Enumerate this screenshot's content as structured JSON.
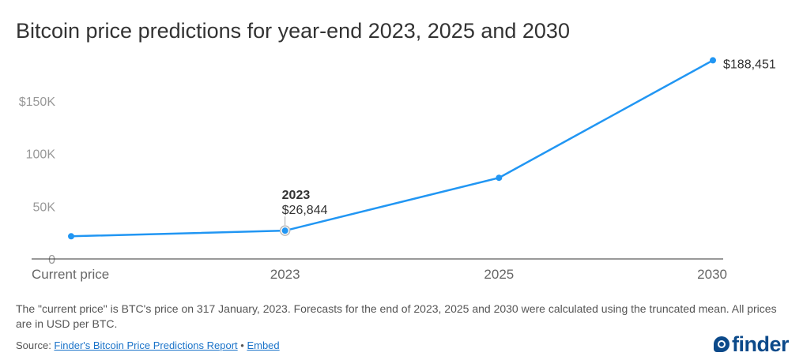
{
  "title": "Bitcoin price predictions for year-end 2023, 2025 and 2030",
  "chart_data": {
    "type": "line",
    "categories": [
      "Current price",
      "2023",
      "2025",
      "2030"
    ],
    "values": [
      21500,
      26844,
      77000,
      188451
    ],
    "y_ticks": [
      {
        "value": 0,
        "label": "0"
      },
      {
        "value": 50000,
        "label": "50K"
      },
      {
        "value": 100000,
        "label": "100K"
      },
      {
        "value": 150000,
        "label": "$150K"
      }
    ],
    "ylim": [
      0,
      200000
    ],
    "grid": false,
    "line_color": "#2196F3",
    "annotations": [
      {
        "category": "2023",
        "title": "2023",
        "text": "$26,844"
      },
      {
        "category": "2030",
        "text": "$188,451"
      }
    ]
  },
  "note": "The \"current price\" is BTC's price on 317 January, 2023. Forecasts for the end of 2023, 2025 and 2030 were calculated using the truncated mean. All prices are in USD per BTC.",
  "source": {
    "prefix": "Source: ",
    "link_text": "Finder's Bitcoin Price Predictions Report",
    "separator": " • ",
    "embed_text": "Embed"
  },
  "logo_text": "finder"
}
